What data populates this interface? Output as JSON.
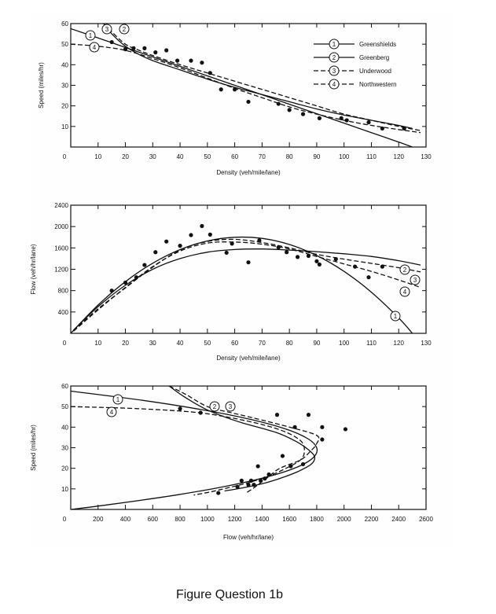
{
  "caption": "Figure Question 1b",
  "colors": {
    "ink": "#111111",
    "panel_bg": "#ffffff",
    "page_bg": "#ffffff"
  },
  "legend": [
    {
      "id": "1",
      "label": "Greenshields",
      "style": "solid"
    },
    {
      "id": "2",
      "label": "Greenberg",
      "style": "solid"
    },
    {
      "id": "3",
      "label": "Underwood",
      "style": "dashed"
    },
    {
      "id": "4",
      "label": "Northwestern",
      "style": "dashed"
    }
  ],
  "chart_data": [
    {
      "type": "scatter",
      "name": "speed-density",
      "xlabel": "Density (veh/mile/lane)",
      "ylabel": "Speed (miles/hr)",
      "xlim": [
        0,
        130
      ],
      "ylim": [
        0,
        60
      ],
      "xticks": [
        0,
        10,
        20,
        30,
        40,
        50,
        60,
        70,
        80,
        90,
        100,
        110,
        120,
        130
      ],
      "yticks": [
        10,
        20,
        30,
        40,
        50,
        60
      ],
      "points": [
        [
          15,
          51
        ],
        [
          20,
          47.5
        ],
        [
          23,
          48
        ],
        [
          27,
          48
        ],
        [
          31,
          46
        ],
        [
          35,
          47
        ],
        [
          39,
          42
        ],
        [
          44,
          42
        ],
        [
          48,
          41
        ],
        [
          51,
          36
        ],
        [
          55,
          28
        ],
        [
          60,
          28
        ],
        [
          65,
          22
        ],
        [
          76,
          21
        ],
        [
          80,
          18
        ],
        [
          85,
          16
        ],
        [
          91,
          14
        ],
        [
          99,
          14
        ],
        [
          101,
          13
        ],
        [
          109,
          12
        ],
        [
          114,
          9
        ],
        [
          122,
          9
        ]
      ],
      "series": [
        {
          "name": "Greenshields",
          "id": "1",
          "style": "solid",
          "x": [
            0,
            10,
            20,
            30,
            40,
            50,
            60,
            70,
            80,
            90,
            100,
            110,
            120,
            125
          ],
          "y": [
            57.5,
            53,
            48.4,
            43.8,
            39.2,
            34.6,
            30,
            25.4,
            20.8,
            16.2,
            11.6,
            7,
            2.4,
            0
          ]
        },
        {
          "name": "Greenberg",
          "id": "2",
          "style": "solid",
          "x": [
            12,
            15,
            20,
            25,
            30,
            40,
            50,
            60,
            70,
            80,
            90,
            100,
            110,
            120,
            125
          ],
          "y": [
            60,
            55,
            49,
            45,
            42,
            37.5,
            33,
            29,
            25.5,
            22,
            18.5,
            15.5,
            13,
            10.5,
            9
          ]
        },
        {
          "name": "Underwood",
          "id": "3",
          "style": "dashed",
          "x": [
            12,
            15,
            20,
            25,
            30,
            40,
            50,
            60,
            70,
            80,
            90,
            100,
            110,
            120,
            128
          ],
          "y": [
            60,
            56,
            50,
            47,
            44.5,
            40,
            36,
            32,
            28,
            24,
            20,
            16,
            13,
            10,
            8
          ]
        },
        {
          "name": "Northwestern",
          "id": "4",
          "style": "dashed",
          "x": [
            0,
            10,
            20,
            30,
            40,
            50,
            60,
            70,
            80,
            90,
            100,
            110,
            120,
            128
          ],
          "y": [
            50,
            49,
            47,
            43,
            38.5,
            33.5,
            28.5,
            24,
            19.5,
            16,
            13,
            10.5,
            8.5,
            7
          ]
        }
      ]
    },
    {
      "type": "scatter",
      "name": "flow-density",
      "xlabel": "Density (veh/mile/lane)",
      "ylabel": "Flow (veh/hr/lane)",
      "xlim": [
        0,
        130
      ],
      "ylim": [
        0,
        2400
      ],
      "xticks": [
        0,
        10,
        20,
        30,
        40,
        50,
        60,
        70,
        80,
        90,
        100,
        110,
        120,
        130
      ],
      "yticks": [
        400,
        800,
        1200,
        1600,
        2000,
        2400
      ],
      "points": [
        [
          15,
          800
        ],
        [
          20,
          950
        ],
        [
          24,
          1050
        ],
        [
          27,
          1280
        ],
        [
          31,
          1520
        ],
        [
          35,
          1720
        ],
        [
          40,
          1640
        ],
        [
          44,
          1840
        ],
        [
          48,
          2010
        ],
        [
          51,
          1850
        ],
        [
          57,
          1510
        ],
        [
          59,
          1680
        ],
        [
          65,
          1330
        ],
        [
          69,
          1740
        ],
        [
          76,
          1610
        ],
        [
          79,
          1520
        ],
        [
          83,
          1430
        ],
        [
          87,
          1450
        ],
        [
          90,
          1350
        ],
        [
          91,
          1290
        ],
        [
          97,
          1390
        ],
        [
          104,
          1250
        ],
        [
          109,
          1050
        ],
        [
          114,
          1250
        ]
      ],
      "series": [
        {
          "name": "Greenshields",
          "id": "1",
          "style": "solid",
          "x": [
            0,
            10,
            20,
            30,
            40,
            50,
            60,
            70,
            80,
            90,
            100,
            110,
            120,
            125
          ],
          "y": [
            0,
            530,
            968,
            1314,
            1568,
            1730,
            1800,
            1778,
            1664,
            1458,
            1160,
            770,
            288,
            0
          ]
        },
        {
          "name": "Greenberg",
          "id": "2",
          "style": "solid",
          "x": [
            1,
            10,
            20,
            30,
            40,
            50,
            60,
            70,
            80,
            90,
            100,
            110,
            120,
            128
          ],
          "y": [
            60,
            500,
            900,
            1200,
            1400,
            1520,
            1570,
            1580,
            1560,
            1530,
            1490,
            1440,
            1360,
            1280
          ]
        },
        {
          "name": "Underwood",
          "id": "3",
          "style": "dashed",
          "x": [
            1,
            10,
            20,
            30,
            40,
            50,
            60,
            70,
            80,
            90,
            100,
            110,
            120,
            128
          ],
          "y": [
            50,
            460,
            850,
            1240,
            1560,
            1720,
            1760,
            1700,
            1600,
            1480,
            1390,
            1310,
            1230,
            1150
          ]
        },
        {
          "name": "Northwestern",
          "id": "4",
          "style": "dashed",
          "x": [
            1,
            10,
            20,
            30,
            40,
            50,
            60,
            70,
            80,
            90,
            100,
            110,
            120,
            128
          ],
          "y": [
            40,
            440,
            860,
            1250,
            1540,
            1690,
            1710,
            1670,
            1580,
            1440,
            1300,
            1160,
            1000,
            860
          ]
        }
      ]
    },
    {
      "type": "scatter",
      "name": "speed-flow",
      "xlabel": "Flow (veh/hr/lane)",
      "ylabel": "Speed (miles/hr)",
      "xlim": [
        0,
        2600
      ],
      "ylim": [
        0,
        60
      ],
      "xticks": [
        0,
        200,
        400,
        600,
        800,
        1000,
        1200,
        1400,
        1600,
        1800,
        2000,
        2200,
        2400,
        2600
      ],
      "yticks": [
        10,
        20,
        30,
        40,
        50,
        60
      ],
      "points": [
        [
          800,
          49
        ],
        [
          950,
          47
        ],
        [
          1080,
          8
        ],
        [
          1220,
          11
        ],
        [
          1250,
          14
        ],
        [
          1300,
          12
        ],
        [
          1320,
          14
        ],
        [
          1340,
          12
        ],
        [
          1370,
          21
        ],
        [
          1390,
          14
        ],
        [
          1420,
          15
        ],
        [
          1450,
          17
        ],
        [
          1510,
          46
        ],
        [
          1550,
          26
        ],
        [
          1610,
          21
        ],
        [
          1640,
          40
        ],
        [
          1700,
          22
        ],
        [
          1740,
          46
        ],
        [
          1840,
          40
        ],
        [
          1840,
          34
        ],
        [
          2010,
          39
        ]
      ],
      "series": [
        {
          "name": "Greenshields",
          "id": "1",
          "style": "solid",
          "x": [
            0,
            530,
            968,
            1314,
            1568,
            1730,
            1800,
            1778,
            1664,
            1458,
            1160,
            770,
            288,
            0
          ],
          "y": [
            57.5,
            53,
            48.4,
            43.8,
            39.2,
            34.6,
            30,
            25.4,
            20.8,
            16.2,
            11.6,
            7,
            2.4,
            0
          ]
        },
        {
          "name": "Greenberg",
          "id": "2",
          "style": "solid",
          "x": [
            720,
            825,
            980,
            1125,
            1260,
            1500,
            1650,
            1740,
            1785,
            1760,
            1665,
            1550,
            1430,
            1260,
            1125
          ],
          "y": [
            60,
            55,
            49,
            45,
            42,
            37.5,
            33,
            29,
            25.5,
            22,
            18.5,
            15.5,
            13,
            10.5,
            9
          ]
        },
        {
          "name": "Underwood",
          "id": "3",
          "style": "dashed",
          "x": [
            720,
            840,
            1000,
            1175,
            1335,
            1600,
            1800,
            1800,
            1750,
            1680,
            1530,
            1450,
            1390,
            1330,
            1280
          ],
          "y": [
            60,
            56,
            50,
            47,
            44.5,
            40,
            36,
            32,
            28,
            24,
            20,
            16,
            13,
            10,
            8
          ]
        },
        {
          "name": "Northwestern",
          "id": "4",
          "style": "dashed",
          "x": [
            0,
            490,
            940,
            1290,
            1540,
            1680,
            1710,
            1680,
            1560,
            1440,
            1300,
            1150,
            1020,
            900
          ],
          "y": [
            50,
            49,
            47,
            43,
            38.5,
            33.5,
            28.5,
            24,
            19.5,
            16,
            13,
            10.5,
            8.5,
            7
          ]
        }
      ]
    }
  ]
}
